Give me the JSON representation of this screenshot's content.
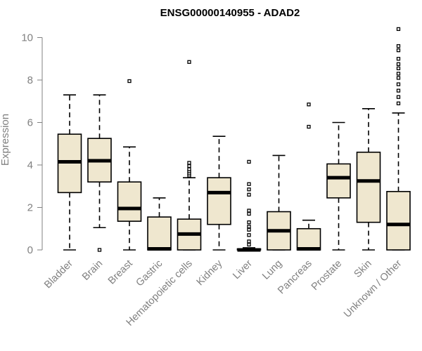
{
  "chart_data": {
    "type": "boxplot",
    "title": "ENSG00000140955 - ADAD2",
    "ylabel": "Expression",
    "xlabel": "",
    "ylim": [
      0,
      10.4
    ],
    "yticks": [
      0,
      2,
      4,
      6,
      8,
      10
    ],
    "box_fill": "#efe7cf",
    "line_color": "#000000",
    "axis_color": "#808080",
    "grid": false,
    "categories": [
      "Bladder",
      "Brain",
      "Breast",
      "Gastric",
      "Hematopoietic cells",
      "Kidney",
      "Liver",
      "Lung",
      "Pancreas",
      "Prostate",
      "Skin",
      "Unknown / Other"
    ],
    "boxes": [
      {
        "category": "Bladder",
        "min": 0,
        "q1": 2.7,
        "median": 4.15,
        "q3": 5.45,
        "max": 7.3,
        "outliers": []
      },
      {
        "category": "Brain",
        "min": 1.05,
        "q1": 3.2,
        "median": 4.2,
        "q3": 5.25,
        "max": 7.3,
        "outliers": [
          0
        ]
      },
      {
        "category": "Breast",
        "min": 0,
        "q1": 1.35,
        "median": 1.95,
        "q3": 3.2,
        "max": 4.85,
        "outliers": [
          7.95
        ]
      },
      {
        "category": "Gastric",
        "min": 0,
        "q1": 0,
        "median": 0.05,
        "q3": 1.55,
        "max": 2.45,
        "outliers": []
      },
      {
        "category": "Hematopoietic cells",
        "min": 0,
        "q1": 0,
        "median": 0.75,
        "q3": 1.45,
        "max": 3.4,
        "outliers": [
          3.5,
          3.6,
          3.7,
          3.8,
          3.95,
          4.1,
          8.85
        ]
      },
      {
        "category": "Kidney",
        "min": 0,
        "q1": 1.2,
        "median": 2.7,
        "q3": 3.4,
        "max": 5.35,
        "outliers": []
      },
      {
        "category": "Liver",
        "min": 0,
        "q1": 0,
        "median": 0,
        "q3": 0.05,
        "max": 0.1,
        "outliers": [
          0.25,
          0.4,
          0.7,
          0.95,
          1.1,
          1.3,
          1.7,
          1.85,
          2.6,
          2.85,
          3.1,
          4.15
        ]
      },
      {
        "category": "Lung",
        "min": 0,
        "q1": 0,
        "median": 0.9,
        "q3": 1.8,
        "max": 4.45,
        "outliers": []
      },
      {
        "category": "Pancreas",
        "min": 0,
        "q1": 0,
        "median": 0.05,
        "q3": 1.0,
        "max": 1.4,
        "outliers": [
          5.8,
          6.85
        ]
      },
      {
        "category": "Prostate",
        "min": 0,
        "q1": 2.45,
        "median": 3.4,
        "q3": 4.05,
        "max": 6.0,
        "outliers": []
      },
      {
        "category": "Skin",
        "min": 0,
        "q1": 1.3,
        "median": 3.25,
        "q3": 4.6,
        "max": 6.65,
        "outliers": []
      },
      {
        "category": "Unknown / Other",
        "min": 0,
        "q1": 0,
        "median": 1.2,
        "q3": 2.75,
        "max": 6.45,
        "outliers": [
          6.9,
          7.2,
          7.5,
          7.8,
          8.1,
          8.3,
          8.55,
          8.75,
          9.0,
          9.4,
          9.6,
          10.4
        ]
      }
    ]
  }
}
